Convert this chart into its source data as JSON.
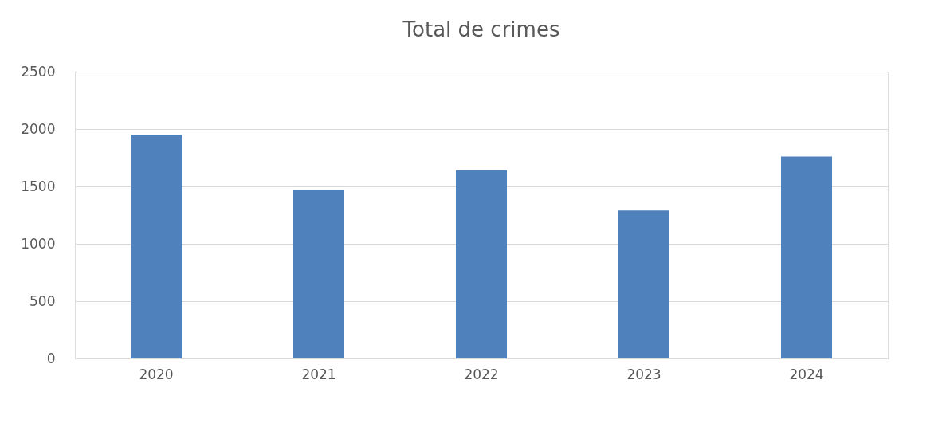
{
  "chart_data": {
    "type": "bar",
    "title": "Total de crimes",
    "categories": [
      "2020",
      "2021",
      "2022",
      "2023",
      "2024"
    ],
    "values": [
      1950,
      1470,
      1640,
      1290,
      1760
    ],
    "color": "#4f81bd",
    "ylim": [
      0,
      2500
    ],
    "yticks": [
      0,
      500,
      1000,
      1500,
      2000,
      2500
    ],
    "grid": "y"
  }
}
